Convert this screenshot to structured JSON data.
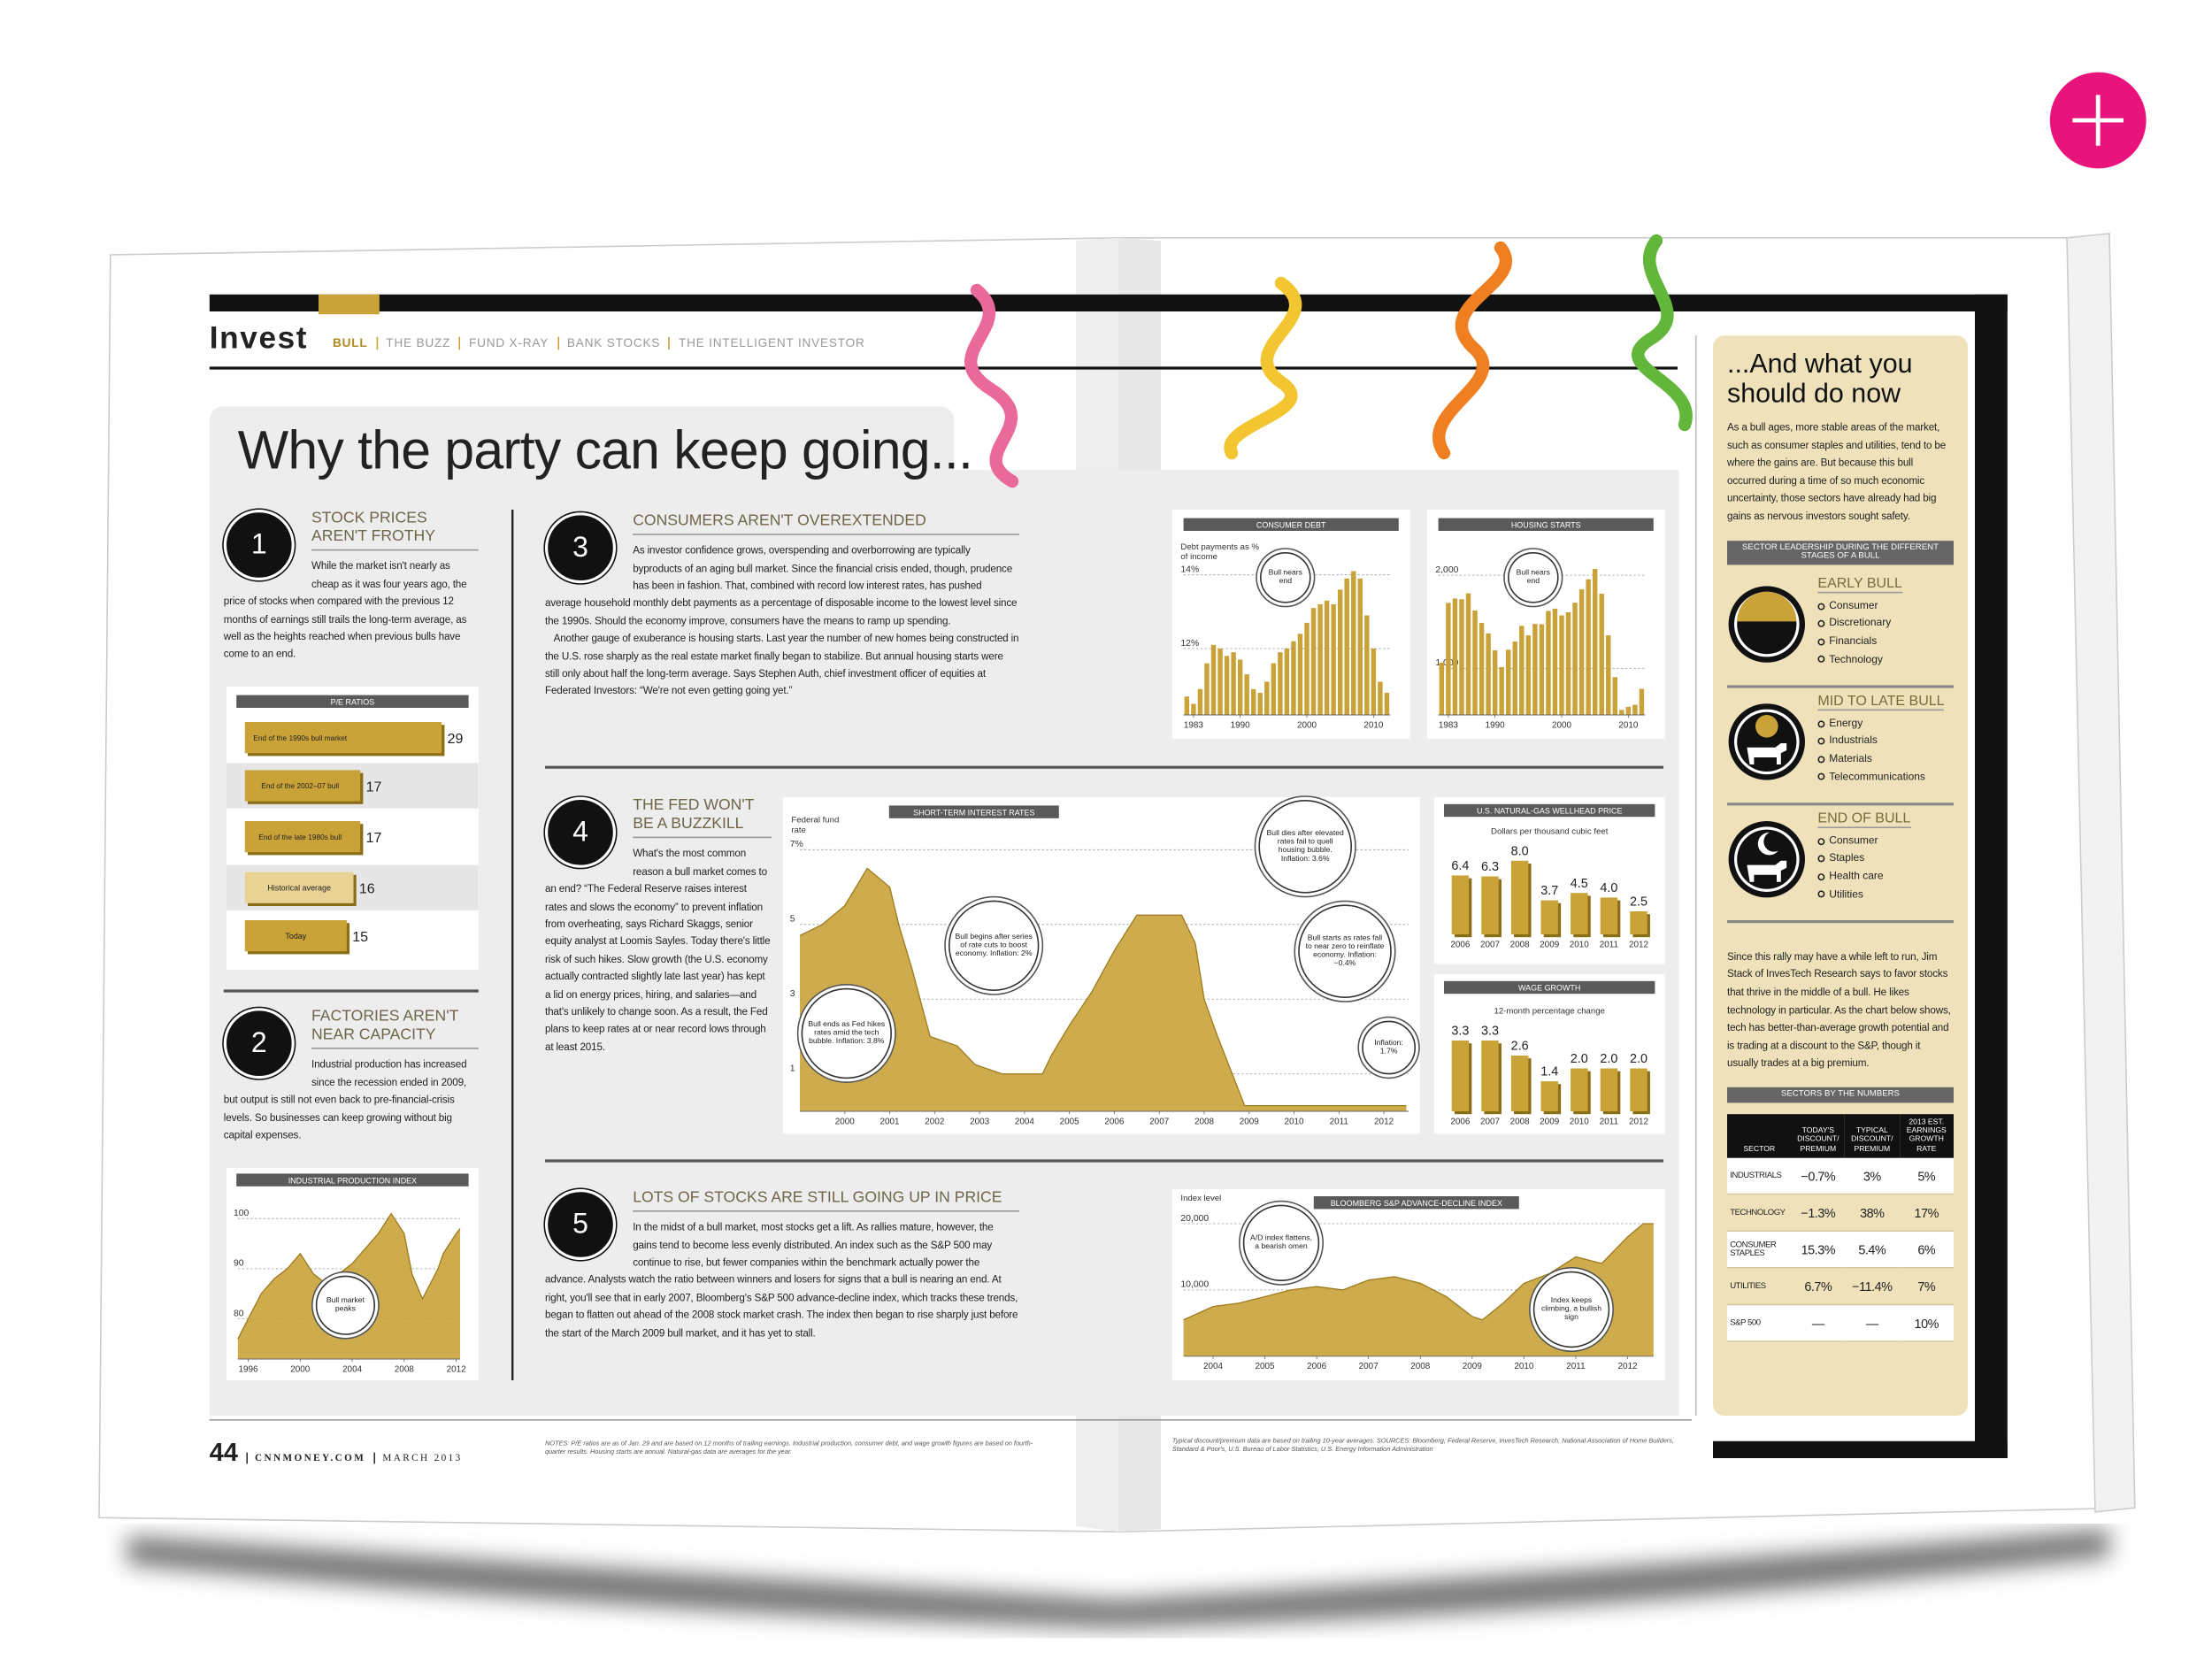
{
  "header": {
    "section": "Invest",
    "nav": [
      "BULL",
      "THE BUZZ",
      "FUND X-RAY",
      "BANK STOCKS",
      "THE INTELLIGENT INVESTOR"
    ]
  },
  "title": "Why the party can keep going...",
  "sections": [
    {
      "number": 1,
      "heading": "STOCK PRICES AREN'T FROTHY",
      "body": [
        "While the market isn't nearly as cheap as it was four years ago, the price of stocks when compared with the previous 12 months of earnings still trails the long-term average, as well as the heights reached when previous bulls have come to an end."
      ]
    },
    {
      "number": 2,
      "heading": "FACTORIES AREN'T NEAR CAPACITY",
      "body": [
        "Industrial production has increased since the recession ended in 2009, but output is still not even back to pre-financial-crisis levels. So businesses can keep growing without big capital expenses."
      ]
    },
    {
      "number": 3,
      "heading": "CONSUMERS AREN'T OVEREXTENDED",
      "body": [
        "As investor confidence grows, overspending and overborrowing are typically byproducts of an aging bull market. Since the financial crisis ended, though, prudence has been in fashion. That, combined with record low interest rates, has pushed average household monthly debt payments as a percentage of disposable income to the lowest level since the 1990s. Should the economy improve, consumers have the means to ramp up spending.",
        "Another gauge of exuberance is housing starts. Last year the number of new homes being constructed in the U.S. rose sharply as the real estate market finally began to stabilize. But annual housing starts were still only about half the long-term average. Says Stephen Auth, chief investment officer of equities at Federated Investors: “We're not even getting going yet.”"
      ]
    },
    {
      "number": 4,
      "heading": "THE FED WON'T BE A BUZZKILL",
      "body": [
        "What's the most common reason a bull market comes to an end? “The Federal Reserve raises interest rates and slows the economy” to prevent inflation from overheating, says Richard Skaggs, senior equity analyst at Loomis Sayles. Today there's little risk of such hikes. Slow growth (the U.S. economy actually contracted slightly late last year) has kept a lid on energy prices, hiring, and salaries—and that's unlikely to change soon. As a result, the Fed plans to keep rates at or near record lows through at least 2015."
      ]
    },
    {
      "number": 5,
      "heading": "LOTS OF STOCKS ARE STILL GOING UP IN PRICE",
      "body": [
        "In the midst of a bull market, most stocks get a lift. As rallies mature, however, the gains tend to become less evenly distributed. An index such as the S&P 500 may continue to rise, but fewer companies within the benchmark actually power the advance. Analysts watch the ratio between winners and losers for signs that a bull is nearing an end. At right, you'll see that in early 2007, Bloomberg's S&P 500 advance-decline index, which tracks these trends, began to flatten out ahead of the 2008 stock market crash. The index then began to rise sharply just before the start of the March 2009 bull market, and it has yet to stall."
      ]
    }
  ],
  "chart_data": [
    {
      "type": "hbar",
      "title": "P/E RATIOS",
      "categories": [
        "End of the 1990s bull market",
        "End of the 2002–07 bull",
        "End of the late 1980s bull",
        "Historical average",
        "Today"
      ],
      "values": [
        29,
        17,
        17,
        16,
        15
      ],
      "colors": [
        "#c9a238",
        "#c9a238",
        "#c9a238",
        "#e9d394",
        "#c9a238"
      ]
    },
    {
      "type": "area",
      "title": "INDUSTRIAL PRODUCTION INDEX",
      "color": "#c9a238",
      "x": [
        1995.2,
        1996,
        1997,
        1998,
        1999,
        2000,
        2001,
        2002,
        2003,
        2004,
        2005,
        2006,
        2007,
        2008,
        2008.6,
        2009.4,
        2010,
        2010.6,
        2011,
        2012,
        2012.3
      ],
      "values": [
        76,
        80,
        85,
        88,
        90,
        93,
        89,
        87,
        89,
        91,
        94,
        97,
        101,
        97,
        89,
        84,
        87,
        90,
        93,
        97,
        98
      ],
      "xlim": [
        1995.2,
        2012.3
      ],
      "ylim": [
        72,
        105
      ],
      "xticks": [
        1996,
        2000,
        2004,
        2008,
        2012
      ],
      "yticks": [
        80,
        90,
        100
      ],
      "annotations": [
        "Bull market peaks"
      ]
    },
    {
      "type": "bar",
      "title": "CONSUMER DEBT",
      "ylabel": "Debt payments as % of income",
      "color": "#c9a238",
      "x": [
        1982,
        1983,
        1984,
        1985,
        1986,
        1987,
        1988,
        1989,
        1990,
        1991,
        1992,
        1993,
        1994,
        1995,
        1996,
        1997,
        1998,
        1999,
        2000,
        2001,
        2002,
        2003,
        2004,
        2005,
        2006,
        2007,
        2008,
        2009,
        2010,
        2011,
        2012
      ],
      "values": [
        10.7,
        10.5,
        10.9,
        11.6,
        12.1,
        12.0,
        11.8,
        11.9,
        11.7,
        11.3,
        10.9,
        10.8,
        11.1,
        11.6,
        11.9,
        12.0,
        12.2,
        12.4,
        12.7,
        13.1,
        13.2,
        13.3,
        13.2,
        13.6,
        13.9,
        14.1,
        13.9,
        12.9,
        12.0,
        11.1,
        10.8
      ],
      "xlim": [
        1981.5,
        2012.5
      ],
      "ylim": [
        10.2,
        15
      ],
      "xticks": [
        1983,
        1990,
        2000,
        2010
      ],
      "yticks": [
        {
          "value": 12,
          "label": "12%"
        },
        {
          "value": 14,
          "label": "14%"
        }
      ],
      "annotations": [
        "Bull nears end"
      ]
    },
    {
      "type": "bar",
      "title": "HOUSING STARTS",
      "color": "#c9a238",
      "x": [
        1982,
        1983,
        1984,
        1985,
        1986,
        1987,
        1988,
        1989,
        1990,
        1991,
        1992,
        1993,
        1994,
        1995,
        1996,
        1997,
        1998,
        1999,
        2000,
        2001,
        2002,
        2003,
        2004,
        2005,
        2006,
        2007,
        2008,
        2009,
        2010,
        2011,
        2012
      ],
      "values": [
        1062,
        1703,
        1750,
        1742,
        1805,
        1621,
        1488,
        1376,
        1193,
        1014,
        1200,
        1288,
        1457,
        1354,
        1477,
        1474,
        1617,
        1641,
        1569,
        1603,
        1705,
        1848,
        1956,
        2068,
        1801,
        1355,
        906,
        554,
        587,
        609,
        780
      ],
      "xlim": [
        1981.5,
        2012.5
      ],
      "ylim": [
        500,
        2400
      ],
      "xticks": [
        1983,
        1990,
        2000,
        2010
      ],
      "yticks": [
        {
          "value": 1000,
          "label": "1,000"
        },
        {
          "value": 2000,
          "label": "2,000"
        }
      ],
      "annotations": [
        "Bull nears end"
      ]
    },
    {
      "type": "area",
      "title": "SHORT-TERM INTEREST RATES",
      "ylabel": "Federal fund rate",
      "color": "#c9a238",
      "x": [
        1999.0,
        1999.5,
        2000.0,
        2000.5,
        2001.0,
        2001.2,
        2001.5,
        2001.9,
        2002.5,
        2002.9,
        2003.5,
        2004.4,
        2004.6,
        2005.0,
        2005.5,
        2006.0,
        2006.5,
        2007.5,
        2007.8,
        2008.0,
        2008.3,
        2008.9,
        2012.5
      ],
      "values": [
        4.7,
        5.0,
        5.5,
        6.5,
        6.0,
        5.0,
        3.8,
        2.0,
        1.75,
        1.25,
        1.0,
        1.0,
        1.5,
        2.3,
        3.2,
        4.3,
        5.25,
        5.25,
        4.5,
        3.0,
        2.0,
        0.15,
        0.15
      ],
      "xlim": [
        1999,
        2012.55
      ],
      "ylim": [
        0,
        7.5
      ],
      "xticks": [
        2000,
        2001,
        2002,
        2003,
        2004,
        2005,
        2006,
        2007,
        2008,
        2009,
        2010,
        2011,
        2012
      ],
      "yticks": [
        1,
        3,
        5,
        {
          "value": 7,
          "label": "7%"
        }
      ],
      "annotations": [
        "Bull ends as Fed hikes rates amid the tech bubble. Inflation: 3.8%",
        "Bull begins after series of rate cuts to boost economy. Inflation: 2%",
        "Bull dies after elevated rates fail to quell housing bubble. Inflation: 3.6%",
        "Bull starts as rates fall to near zero to reinflate economy. Inflation: −0.4%",
        "Inflation: 1.7%"
      ]
    },
    {
      "type": "bar",
      "title": "U.S. NATURAL-GAS WELLHEAD PRICE",
      "subtitle": "Dollars per thousand cubic feet",
      "color": "#c9a238",
      "categories": [
        "2006",
        "2007",
        "2008",
        "2009",
        "2010",
        "2011",
        "2012"
      ],
      "values": [
        6.4,
        6.3,
        8.0,
        3.7,
        4.5,
        4.0,
        2.5
      ],
      "value_labels": [
        "6.4",
        "6.3",
        "8.0",
        "3.7",
        "4.5",
        "4.0",
        "2.5"
      ]
    },
    {
      "type": "bar",
      "title": "WAGE GROWTH",
      "subtitle": "12-month percentage change",
      "color": "#c9a238",
      "categories": [
        "2006",
        "2007",
        "2008",
        "2009",
        "2010",
        "2011",
        "2012"
      ],
      "values": [
        3.3,
        3.3,
        2.6,
        1.4,
        2.0,
        2.0,
        2.0
      ],
      "value_labels": [
        "3.3",
        "3.3",
        "2.6",
        "1.4",
        "2.0",
        "2.0",
        "2.0"
      ]
    },
    {
      "type": "area",
      "title": "BLOOMBERG S&P ADVANCE-DECLINE INDEX",
      "ylabel": "Index level",
      "color": "#c9a238",
      "x": [
        2003.43,
        2004,
        2004.5,
        2005,
        2005.5,
        2006,
        2006.5,
        2007,
        2007.5,
        2008,
        2008.5,
        2009,
        2009.2,
        2009.6,
        2010,
        2010.5,
        2011,
        2011.5,
        2012,
        2012.3,
        2012.5
      ],
      "values": [
        5500,
        7500,
        8000,
        9000,
        10000,
        10500,
        10000,
        11500,
        12000,
        11000,
        9000,
        6000,
        5500,
        8000,
        11000,
        12500,
        15000,
        14000,
        18000,
        20000,
        20000
      ],
      "xlim": [
        2003.43,
        2012.5
      ],
      "ylim": [
        0,
        22000
      ],
      "xticks": [
        2004,
        2005,
        2006,
        2007,
        2008,
        2009,
        2010,
        2011,
        2012
      ],
      "yticks": [
        {
          "value": 10000,
          "label": "10,000"
        },
        {
          "value": 20000,
          "label": "20,000"
        }
      ],
      "annotations": [
        "A/D index flattens, a bearish omen",
        "Index keeps climbing, a bullish sign"
      ]
    }
  ],
  "sidebar": {
    "title": "...And what you should do now",
    "intro": "As a bull ages, more stable areas of the market, such as consumer staples and utilities, tend to be where the gains are. But because this bull occurred during a time of so much economic uncertainty, those sectors have already had big gains as nervous investors sought safety.",
    "stages_title": "SECTOR LEADERSHIP DURING THE DIFFERENT STAGES OF A BULL",
    "stages": [
      {
        "name": "EARLY BULL",
        "sectors": [
          "Consumer",
          "Discretionary",
          "Financials",
          "Technology"
        ]
      },
      {
        "name": "MID TO LATE BULL",
        "sectors": [
          "Energy",
          "Industrials",
          "Materials",
          "Telecommunications"
        ]
      },
      {
        "name": "END OF BULL",
        "sectors": [
          "Consumer",
          "Staples",
          "Health care",
          "Utilities"
        ]
      }
    ],
    "body": "Since this rally may have a while left to run, Jim Stack of InvesTech Research says to favor stocks that thrive in the middle of a bull. He likes technology in particular. As the chart below shows, tech has better-than-average growth potential and is trading at a discount to the S&P, though it usually trades at a big premium.",
    "table": {
      "title": "SECTORS BY THE NUMBERS",
      "columns": [
        "SECTOR",
        "TODAY'S DISCOUNT/ PREMIUM",
        "TYPICAL DISCOUNT/ PREMIUM",
        "2013 EST. EARNINGS GROWTH RATE"
      ],
      "rows": [
        [
          "INDUSTRIALS",
          "−0.7%",
          "3%",
          "5%"
        ],
        [
          "TECHNOLOGY",
          "−1.3%",
          "38%",
          "17%"
        ],
        [
          "CONSUMER STAPLES",
          "15.3%",
          "5.4%",
          "6%"
        ],
        [
          "UTILITIES",
          "6.7%",
          "−11.4%",
          "7%"
        ],
        [
          "S&P 500",
          "—",
          "—",
          "10%"
        ]
      ]
    }
  },
  "footer": {
    "page": 44,
    "site": "CNNMONEY.COM",
    "date": "MARCH 2013",
    "notes": "NOTES: P/E ratios are as of Jan. 29 and are based on 12 months of trailing earnings. Industrial production, consumer debt, and wage growth figures are based on fourth-quarter results. Housing starts are annual. Natural-gas data are averages for the year.",
    "sources": "Typical discount/premium data are based on trailing 10-year averages. SOURCES: Bloomberg, Federal Reserve, InvesTech Research, National Association of Home Builders, Standard & Poor's, U.S. Bureau of Labor Statistics, U.S. Energy Information Administration"
  }
}
